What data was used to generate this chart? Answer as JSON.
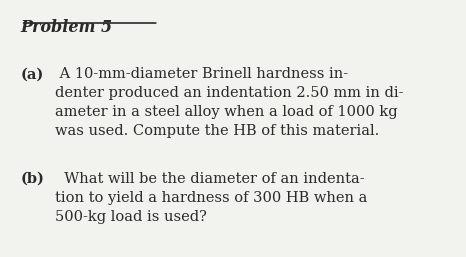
{
  "background_color": "#f2f2ee",
  "title": "Problem 5",
  "title_fontsize": 11.5,
  "body_fontsize": 10.5,
  "text_color": "#2a2a2a",
  "para_a_label": "(a)",
  "para_a_text": " A 10-mm-diameter Brinell hardness in-\ndenter produced an indentation 2.50 mm in di-\nameter in a steel alloy when a load of 1000 kg\nwas used. Compute the HB of this material.",
  "para_b_label": "(b)",
  "para_b_text": "  What will be the diameter of an indenta-\ntion to yield a hardness of 300 HB when a\n500-kg load is used?"
}
